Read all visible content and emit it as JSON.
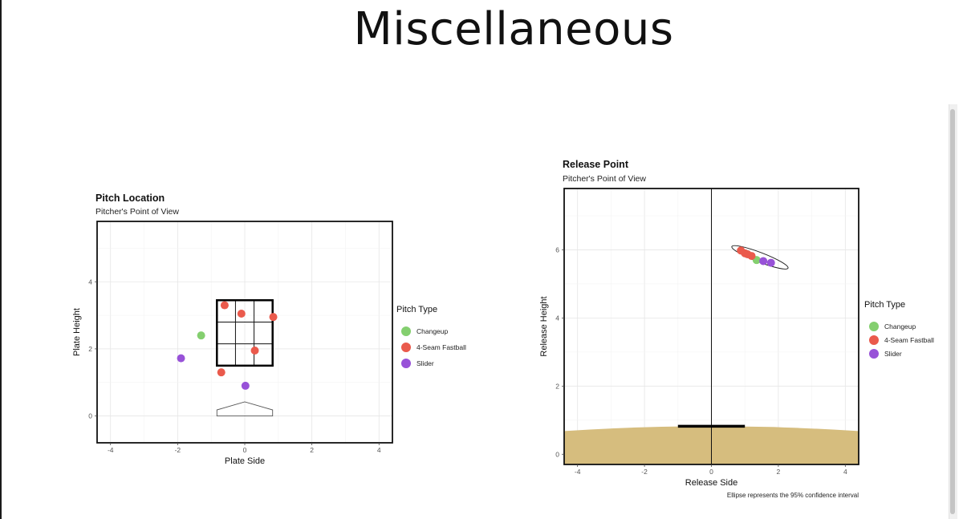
{
  "page": {
    "title": "Miscellaneous"
  },
  "colors": {
    "changeup": "#84cf6f",
    "fastball": "#ea5a4c",
    "slider": "#9852d8",
    "ground": "#d6bd7e"
  },
  "chart_data": [
    {
      "type": "scatter",
      "title": "Pitch Location",
      "subtitle": "Pitcher's Point of View",
      "xlabel": "Plate Side",
      "ylabel": "Plate Height",
      "xlim": [
        -4.4,
        4.4
      ],
      "ylim": [
        -0.8,
        5.8
      ],
      "xticks": [
        -4,
        -2,
        0,
        2,
        4
      ],
      "yticks": [
        0,
        2,
        4
      ],
      "grid": true,
      "legend": {
        "title": "Pitch Type",
        "position": "right",
        "entries": [
          "Changeup",
          "4-Seam Fastball",
          "Slider"
        ]
      },
      "strike_zone": {
        "x": [
          -0.83,
          0.83
        ],
        "y": [
          1.5,
          3.45
        ]
      },
      "series": [
        {
          "name": "Changeup",
          "color": "#84cf6f",
          "points": [
            [
              -1.3,
              2.4
            ]
          ]
        },
        {
          "name": "4-Seam Fastball",
          "color": "#ea5a4c",
          "points": [
            [
              -0.6,
              3.3
            ],
            [
              -0.1,
              3.05
            ],
            [
              0.85,
              2.95
            ],
            [
              0.3,
              1.95
            ],
            [
              -0.7,
              1.3
            ]
          ]
        },
        {
          "name": "Slider",
          "color": "#9852d8",
          "points": [
            [
              -1.9,
              1.72
            ],
            [
              0.02,
              0.9
            ]
          ]
        }
      ]
    },
    {
      "type": "scatter",
      "title": "Release Point",
      "subtitle": "Pitcher's Point of View",
      "xlabel": "Release Side",
      "ylabel": "Release Height",
      "note": "Ellipse represents the 95% confidence interval",
      "xlim": [
        -4.4,
        4.4
      ],
      "ylim": [
        -0.3,
        7.8
      ],
      "xticks": [
        -4,
        -2,
        0,
        2,
        4
      ],
      "yticks": [
        0,
        2,
        4,
        6
      ],
      "grid": true,
      "legend": {
        "title": "Pitch Type",
        "position": "right",
        "entries": [
          "Changeup",
          "4-Seam Fastball",
          "Slider"
        ]
      },
      "rubber": {
        "x": [
          -1.0,
          1.0
        ],
        "y": 0.82
      },
      "ellipse": {
        "cx": 1.45,
        "cy": 5.78,
        "rx": 0.9,
        "ry": 0.085,
        "angle_deg": 21
      },
      "series": [
        {
          "name": "Changeup",
          "color": "#84cf6f",
          "points": [
            [
              1.35,
              5.7
            ]
          ]
        },
        {
          "name": "4-Seam Fastball",
          "color": "#ea5a4c",
          "points": [
            [
              0.88,
              5.98
            ],
            [
              1.0,
              5.9
            ],
            [
              1.08,
              5.87
            ],
            [
              1.2,
              5.82
            ]
          ]
        },
        {
          "name": "Slider",
          "color": "#9852d8",
          "points": [
            [
              1.55,
              5.67
            ],
            [
              1.78,
              5.62
            ]
          ]
        }
      ]
    }
  ]
}
